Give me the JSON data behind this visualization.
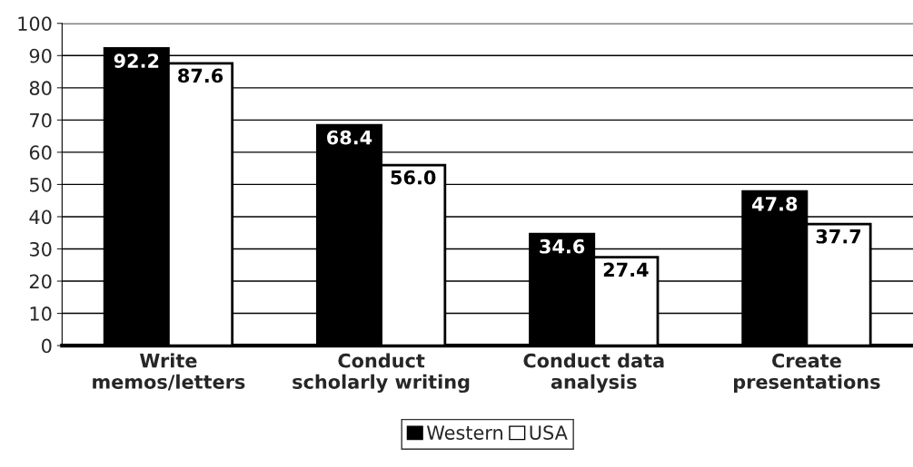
{
  "chart_data": {
    "type": "bar",
    "categories": [
      "Write\nmemos/letters",
      "Conduct\nscholarly writing",
      "Conduct data\nanalysis",
      "Create\npresentations"
    ],
    "series": [
      {
        "name": "Western",
        "color": "#000000",
        "values": [
          92.2,
          68.4,
          34.6,
          47.8
        ],
        "value_labels": [
          "92.2",
          "68.4",
          "34.6",
          "47.8"
        ]
      },
      {
        "name": "USA",
        "color": "#ffffff",
        "values": [
          87.6,
          56.0,
          27.4,
          37.7
        ],
        "value_labels": [
          "87.6",
          "56.0",
          "27.4",
          "37.7"
        ]
      }
    ],
    "ylim": [
      0,
      100
    ],
    "yticks": [
      0,
      10,
      20,
      30,
      40,
      50,
      60,
      70,
      80,
      90,
      100
    ],
    "grid": "y",
    "legend": "bottom"
  }
}
